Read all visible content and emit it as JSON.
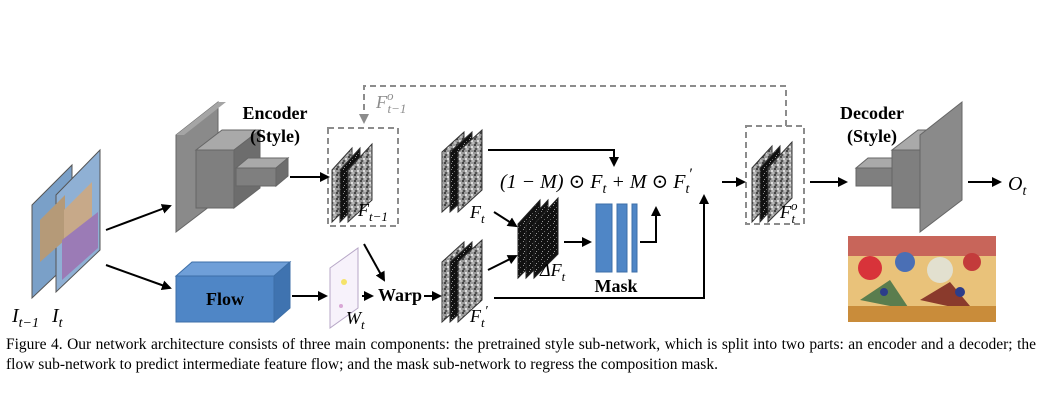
{
  "figure": {
    "encoder_label_line1": "Encoder",
    "encoder_label_line2": "(Style)",
    "decoder_label_line1": "Decoder",
    "decoder_label_line2": "(Style)",
    "flow_label": "Flow",
    "warp_label": "Warp",
    "mask_label": "Mask",
    "equation_part1": "(1 − M) ⊙ F",
    "equation_part1_sub": "t",
    "equation_part2": " + M ⊙ F",
    "equation_part2_sub": "t",
    "equation_part2_prime": "′",
    "label_input_prev": "I",
    "label_input_prev_sub": "t−1",
    "label_input_cur": "I",
    "label_input_cur_sub": "t",
    "label_feat_prev": "F",
    "label_feat_prev_sub": "t−1",
    "label_feat_prev_o": "F",
    "label_feat_prev_o_sup": "o",
    "label_feat_prev_o_sub": "t−1",
    "label_warp_field": "W",
    "label_warp_field_sub": "t",
    "label_feat_warped": "F",
    "label_feat_warped_sub": "t",
    "label_feat_warped_prime": "′",
    "label_feat_cur": "F",
    "label_feat_cur_sub": "t",
    "label_delta": "ΔF",
    "label_delta_sub": "t",
    "label_out_feat": "F",
    "label_out_feat_sup": "o",
    "label_out_feat_sub": "t",
    "label_output": "O",
    "label_output_sub": "t"
  },
  "colors": {
    "encoder_gray": "#7f7f7f",
    "flow_blue": "#4f86c6",
    "mask_blue": "#4f86c6",
    "dashed_gray": "#8c8c8c"
  },
  "caption": "Figure 4. Our network architecture consists of three main components: the pretrained style sub-network, which is split into two parts: an encoder and a decoder; the flow sub-network to predict intermediate feature flow; and the mask sub-network to regress the composition mask."
}
